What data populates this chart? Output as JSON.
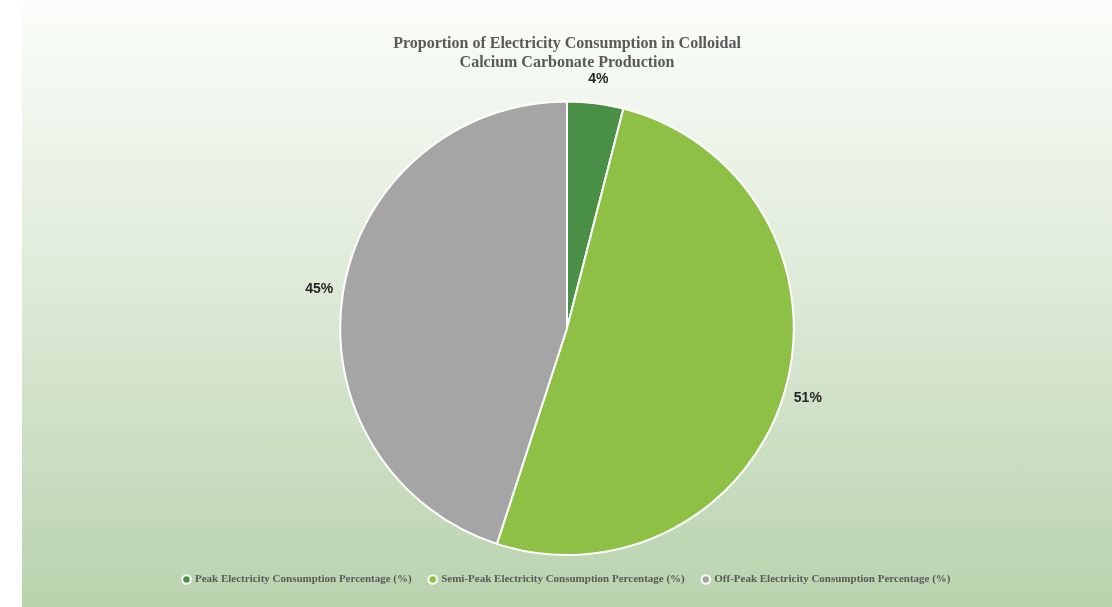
{
  "chart_data": {
    "type": "pie",
    "title": "Proportion of Electricity Consumption in Colloidal Calcium Carbonate Production",
    "categories": [
      "Peak Electricity Consumption Percentage (%)",
      "Semi-Peak Electricity Consumption Percentage (%)",
      "Off-Peak Electricity Consumption Percentage (%)"
    ],
    "values": [
      4,
      51,
      45
    ],
    "colors": [
      "#4a8f46",
      "#8dc044",
      "#a5a5a5"
    ],
    "value_labels": [
      "4%",
      "51%",
      "45%"
    ],
    "legend": "bottom"
  }
}
